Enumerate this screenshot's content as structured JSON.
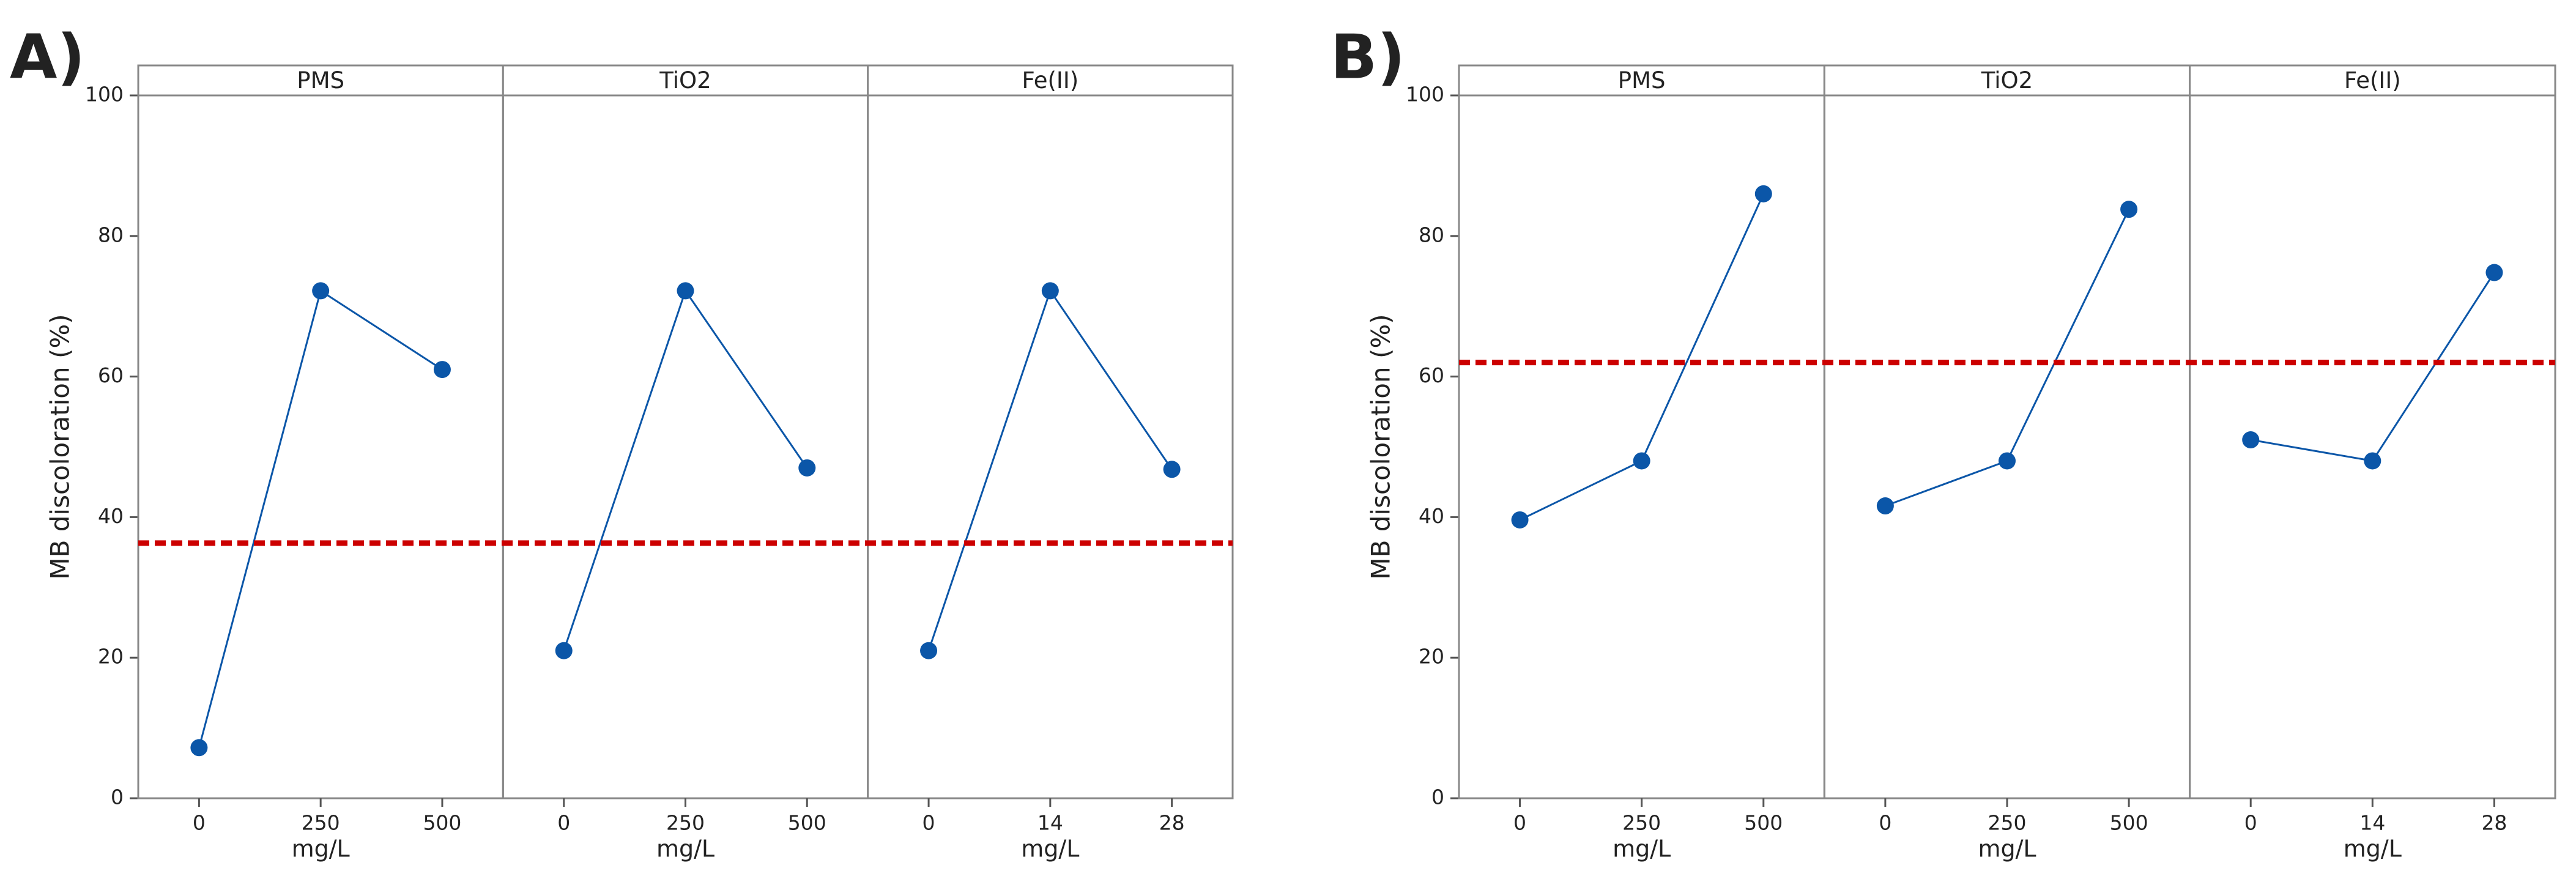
{
  "chart_data": [
    {
      "type": "line",
      "panel_label": "A)",
      "y_label": "MB discoloration (%)",
      "ylim": [
        0,
        100
      ],
      "yticks": [
        0,
        20,
        40,
        60,
        80,
        100
      ],
      "color": "#0b56a8",
      "reference_line": 36.3,
      "reference_color": "#cc0000",
      "panels": [
        {
          "title": "PMS",
          "categories": [
            "0",
            "250",
            "500"
          ],
          "x_label": "mg/L",
          "values": [
            7.2,
            72.2,
            61
          ]
        },
        {
          "title": "TiO2",
          "categories": [
            "0",
            "250",
            "500"
          ],
          "x_label": "mg/L",
          "values": [
            21,
            72.2,
            47
          ]
        },
        {
          "title": "Fe(II)",
          "categories": [
            "0",
            "14",
            "28"
          ],
          "x_label": "mg/L",
          "values": [
            21,
            72.2,
            46.8
          ]
        }
      ]
    },
    {
      "type": "line",
      "panel_label": "B)",
      "y_label": "MB discoloration (%)",
      "ylim": [
        0,
        100
      ],
      "yticks": [
        0,
        20,
        40,
        60,
        80,
        100
      ],
      "color": "#0b56a8",
      "reference_line": 62,
      "reference_color": "#cc0000",
      "panels": [
        {
          "title": "PMS",
          "categories": [
            "0",
            "250",
            "500"
          ],
          "x_label": "mg/L",
          "values": [
            39.6,
            48,
            86
          ]
        },
        {
          "title": "TiO2",
          "categories": [
            "0",
            "250",
            "500"
          ],
          "x_label": "mg/L",
          "values": [
            41.6,
            48,
            83.8
          ]
        },
        {
          "title": "Fe(II)",
          "categories": [
            "0",
            "14",
            "28"
          ],
          "x_label": "mg/L",
          "values": [
            51,
            48,
            74.8
          ]
        }
      ]
    }
  ]
}
